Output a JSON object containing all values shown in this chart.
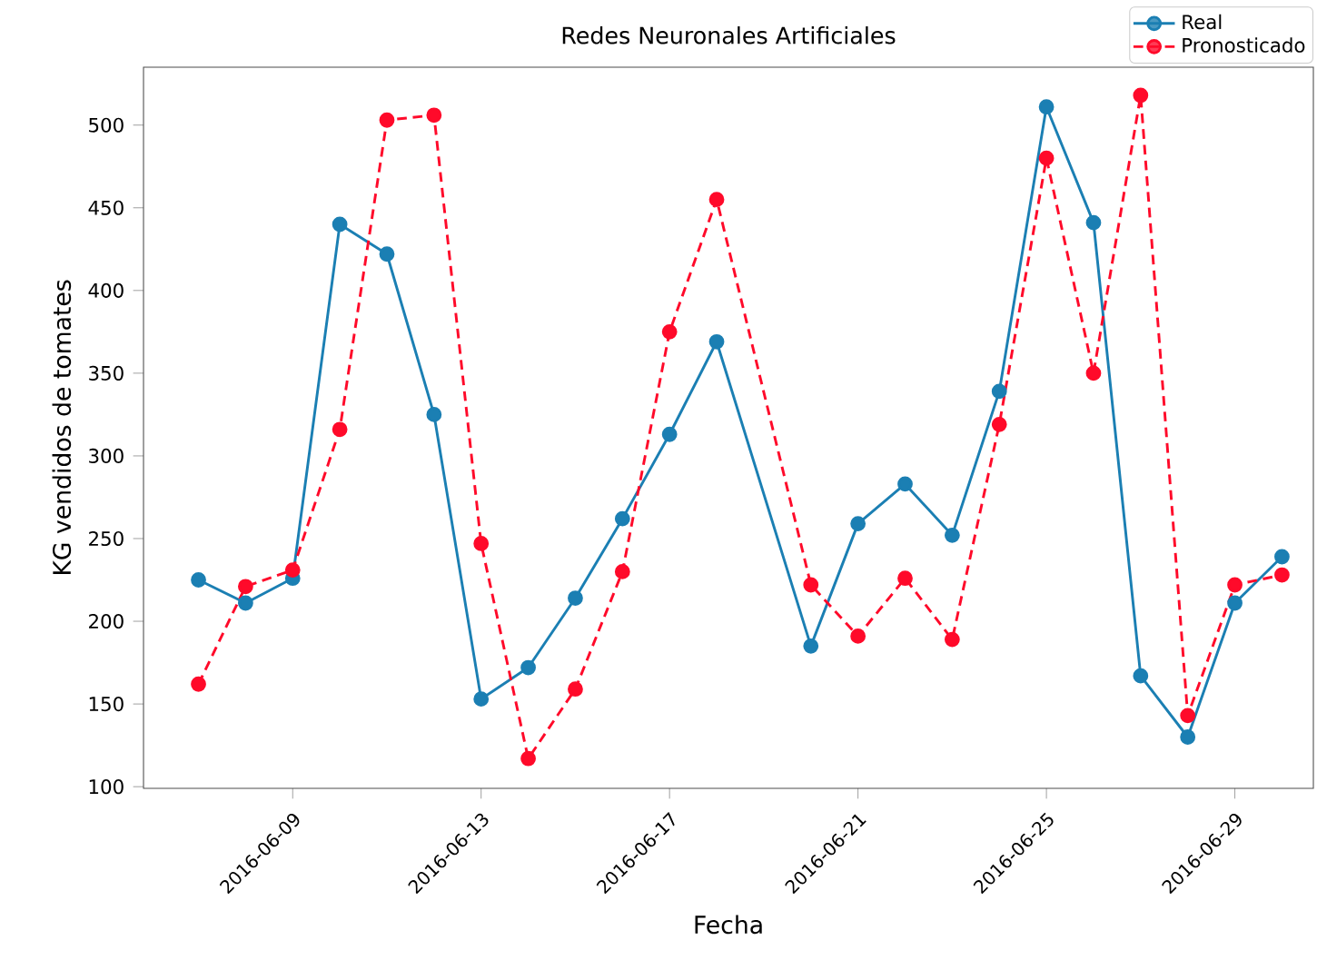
{
  "chart_data": {
    "type": "line",
    "title": "Redes Neuronales Artificiales",
    "xlabel": "Fecha",
    "ylabel": "KG vendidos de tomates",
    "x": [
      "2016-06-07",
      "2016-06-08",
      "2016-06-09",
      "2016-06-10",
      "2016-06-11",
      "2016-06-12",
      "2016-06-13",
      "2016-06-14",
      "2016-06-15",
      "2016-06-16",
      "2016-06-17",
      "2016-06-18",
      "2016-06-20",
      "2016-06-21",
      "2016-06-22",
      "2016-06-23",
      "2016-06-24",
      "2016-06-25",
      "2016-06-26",
      "2016-06-27",
      "2016-06-28",
      "2016-06-29",
      "2016-06-30"
    ],
    "series": [
      {
        "name": "Real",
        "color": "#1b7fb3",
        "line_style": "solid",
        "values": [
          225,
          211,
          226,
          440,
          422,
          325,
          153,
          172,
          214,
          262,
          313,
          369,
          185,
          259,
          283,
          252,
          339,
          511,
          441,
          167,
          130,
          211,
          239
        ]
      },
      {
        "name": "Pronosticado",
        "color": "#ff0a2a",
        "line_style": "dashed",
        "values": [
          162,
          221,
          231,
          316,
          503,
          506,
          247,
          117,
          159,
          230,
          375,
          455,
          222,
          191,
          226,
          189,
          319,
          480,
          350,
          518,
          143,
          222,
          228
        ]
      }
    ],
    "xlim": [
      "2016-06-05T20:00",
      "2016-06-30T16:00"
    ],
    "ylim": [
      99,
      535
    ],
    "xticks": [
      "2016-06-09",
      "2016-06-13",
      "2016-06-17",
      "2016-06-21",
      "2016-06-25",
      "2016-06-29"
    ],
    "yticks": [
      100,
      150,
      200,
      250,
      300,
      350,
      400,
      450,
      500
    ],
    "grid": false,
    "legend": "top right",
    "marker": "circle"
  }
}
